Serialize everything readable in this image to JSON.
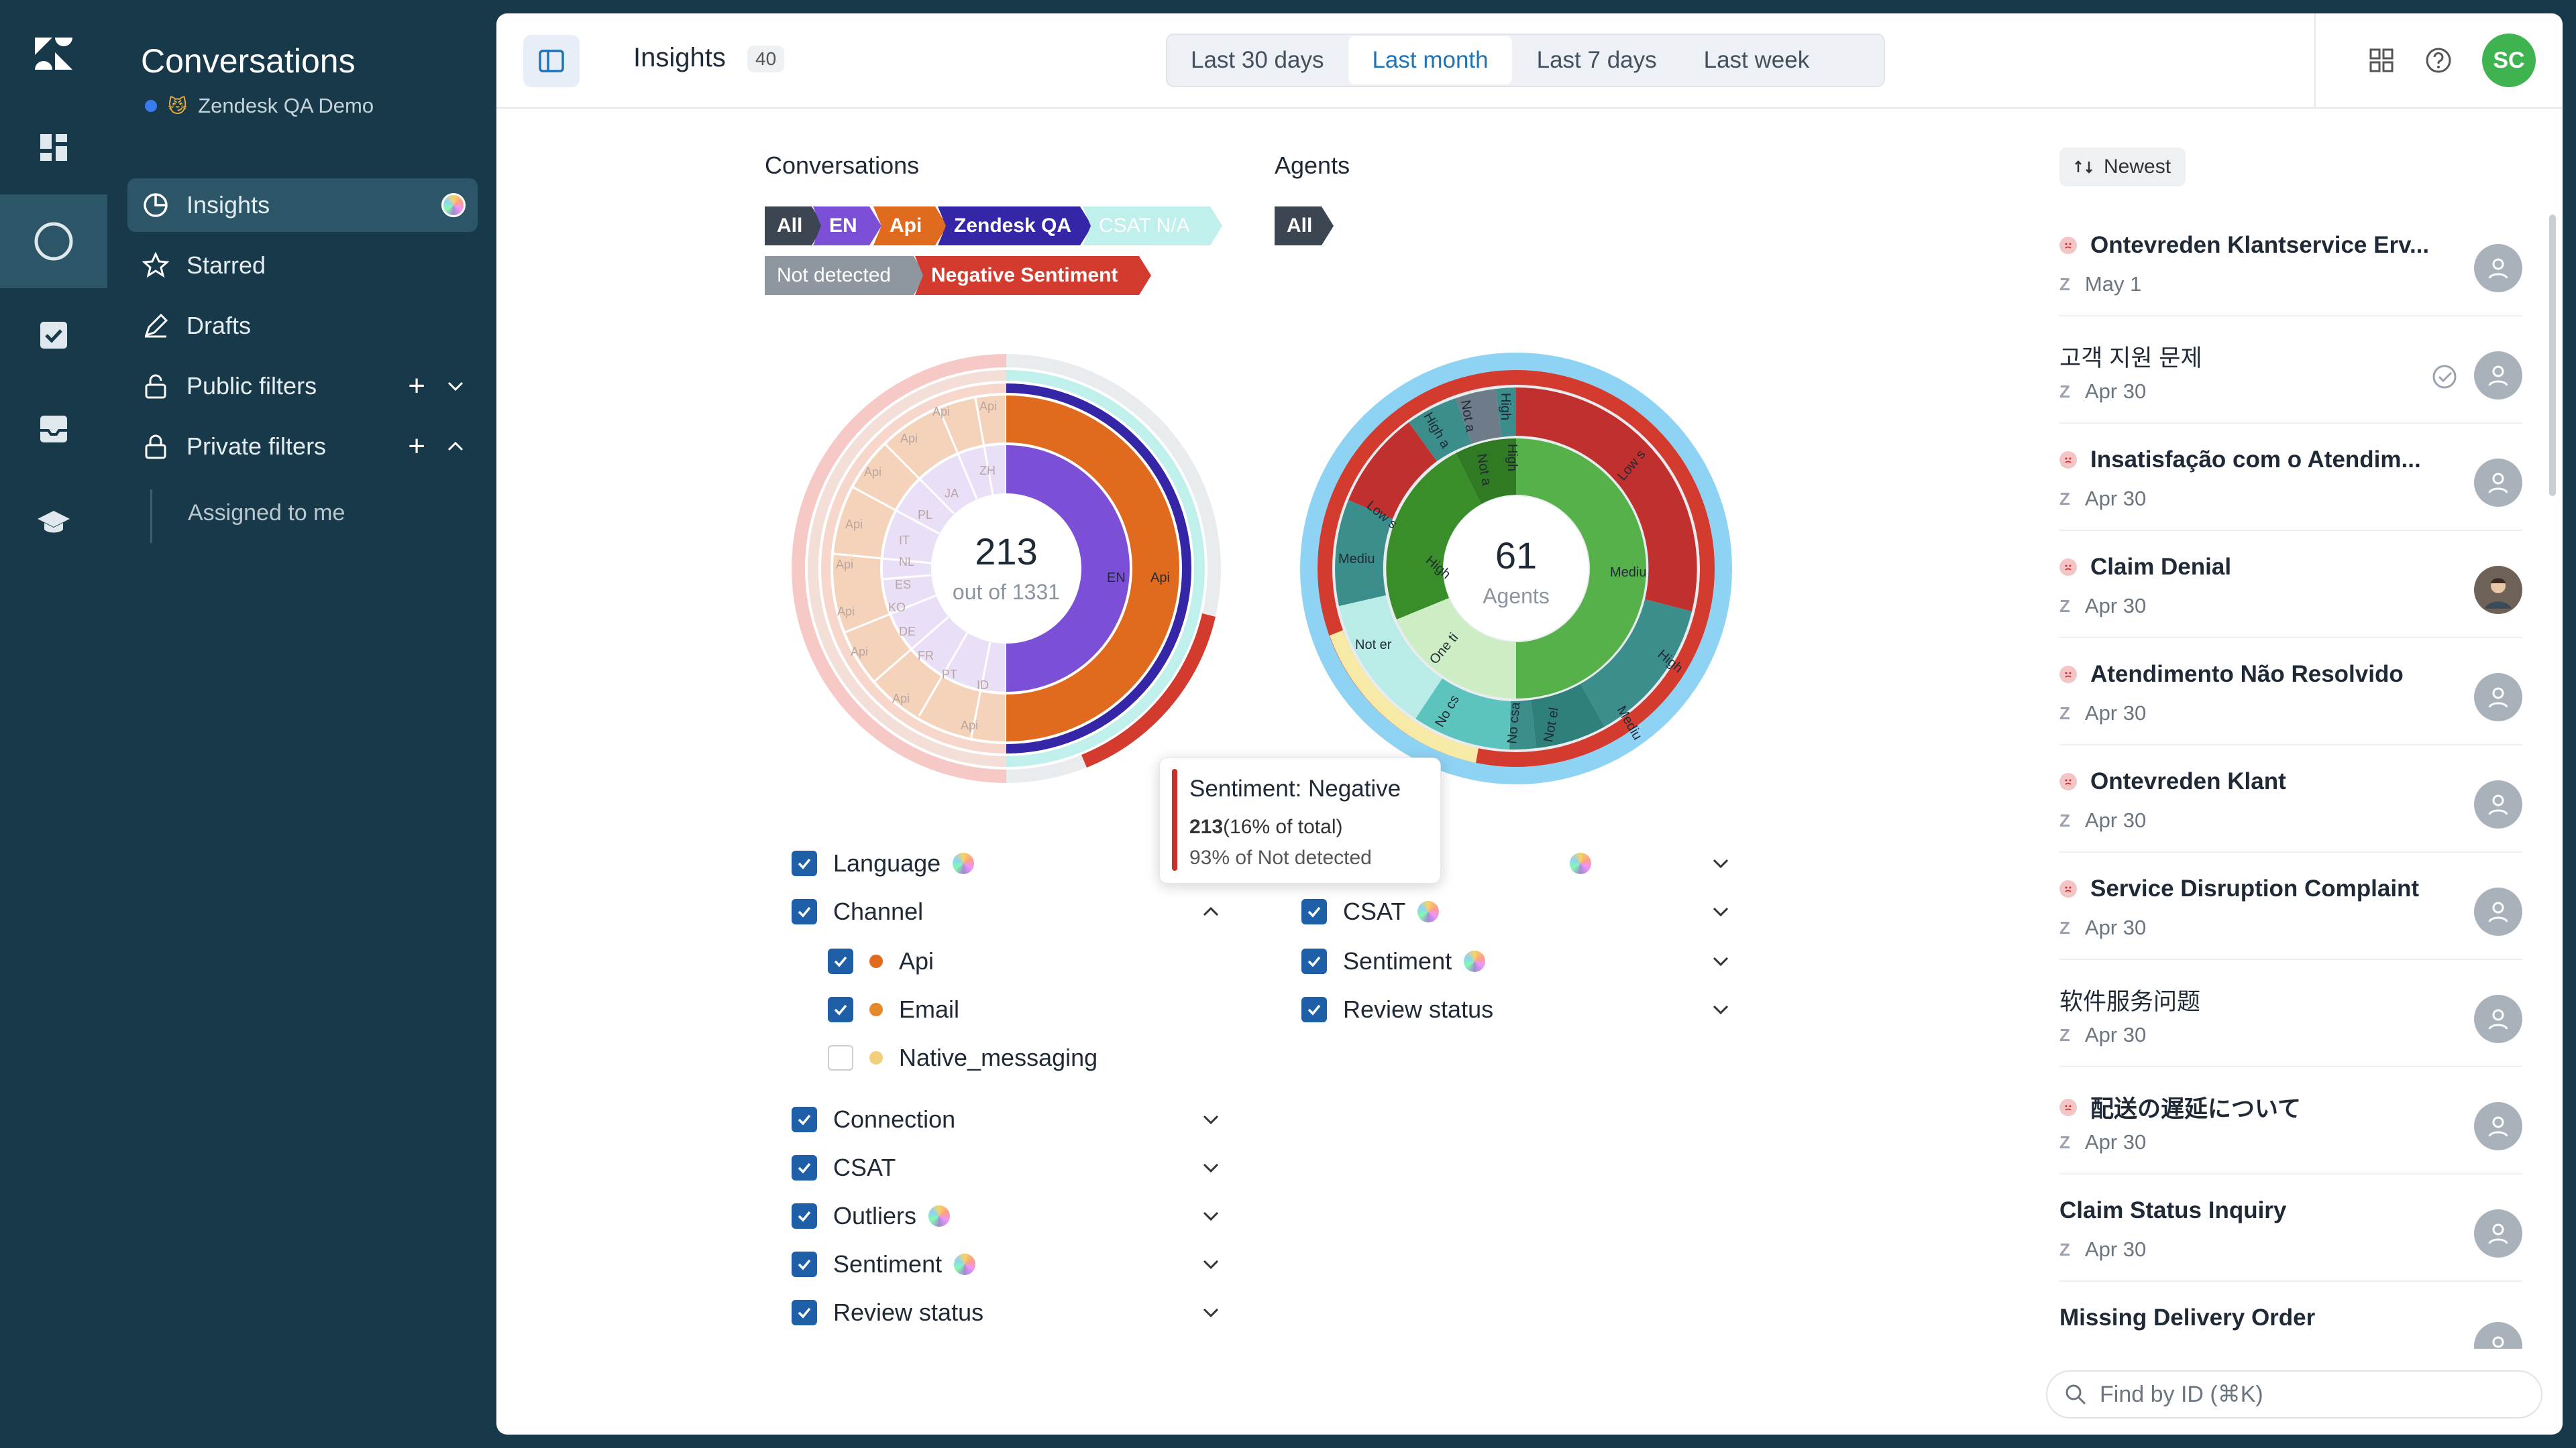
{
  "sidebar": {
    "title": "Conversations",
    "workspace": "Zendesk QA Demo",
    "items": [
      {
        "label": "Insights"
      },
      {
        "label": "Starred"
      },
      {
        "label": "Drafts"
      },
      {
        "label": "Public filters"
      },
      {
        "label": "Private filters"
      }
    ],
    "sub_item": "Assigned to me"
  },
  "header": {
    "title": "Insights",
    "count": "40",
    "ranges": [
      "Last 30 days",
      "Last month",
      "Last 7 days",
      "Last week"
    ],
    "selected_range": "Last month",
    "user_initials": "SC"
  },
  "conversations_section": {
    "title": "Conversations",
    "chips": [
      {
        "label": "All",
        "color": "#3b4652"
      },
      {
        "label": "EN",
        "color": "#7b4fd6"
      },
      {
        "label": "Api",
        "color": "#e06b1f"
      },
      {
        "label": "Zendesk QA",
        "color": "#3526a8"
      },
      {
        "label": "CSAT N/A",
        "color": "#bff0ec"
      },
      {
        "label": "Not detected",
        "color": "#8e979f"
      },
      {
        "label": "Negative Sentiment",
        "color": "#d43b2f"
      }
    ],
    "center_value": "213",
    "center_sub": "out of 1331",
    "inner_labels": [
      "EN",
      "Api"
    ],
    "faded_labels": [
      "Api",
      "Api",
      "Api",
      "Api",
      "Api",
      "Api",
      "Api",
      "Api",
      "Api",
      "Api",
      "JA",
      "PL",
      "IT",
      "NL",
      "ES",
      "KO",
      "DE",
      "FR",
      "PT",
      "ID",
      "ZH"
    ]
  },
  "agents_section": {
    "title": "Agents",
    "chips": [
      {
        "label": "All",
        "color": "#3b4652"
      }
    ],
    "center_value": "61",
    "center_sub": "Agents",
    "labels": [
      "Low s",
      "Mediu",
      "High",
      "Mediu",
      "Not er",
      "One ti",
      "No cs",
      "No csa",
      "Not el",
      "High",
      "Low s",
      "Mediu",
      "High a",
      "Not a",
      "High",
      "Not a",
      "High"
    ]
  },
  "tooltip": {
    "title": "Sentiment: Negative",
    "value": "213",
    "pct": "(16% of total)",
    "line2": "93% of Not detected"
  },
  "left_filters": {
    "language": "Language",
    "channel": "Channel",
    "channel_options": [
      {
        "label": "Api",
        "checked": true,
        "color": "#e06b1f"
      },
      {
        "label": "Email",
        "checked": true,
        "color": "#e58a2a"
      },
      {
        "label": "Native_messaging",
        "checked": false,
        "color": "#f2cf7a"
      }
    ],
    "connection": "Connection",
    "csat": "CSAT",
    "outliers": "Outliers",
    "sentiment": "Sentiment",
    "review_status": "Review status"
  },
  "right_filters": {
    "csat": "CSAT",
    "sentiment": "Sentiment",
    "review_status": "Review status"
  },
  "list": {
    "sort_label": "Newest",
    "items": [
      {
        "title": "Ontevreden Klantservice Erv...",
        "date": "May 1",
        "sad": true,
        "bold": true
      },
      {
        "title": "고객 지원 문제",
        "date": "Apr 30",
        "sad": false,
        "bold": false,
        "reviewed": true
      },
      {
        "title": "Insatisfação com o Atendim...",
        "date": "Apr 30",
        "sad": true,
        "bold": true
      },
      {
        "title": "Claim Denial",
        "date": "Apr 30",
        "sad": true,
        "bold": true,
        "photo": true
      },
      {
        "title": "Atendimento Não Resolvido",
        "date": "Apr 30",
        "sad": true,
        "bold": true
      },
      {
        "title": "Ontevreden Klant",
        "date": "Apr 30",
        "sad": true,
        "bold": true
      },
      {
        "title": "Service Disruption Complaint",
        "date": "Apr 30",
        "sad": true,
        "bold": true
      },
      {
        "title": "软件服务问题",
        "date": "Apr 30",
        "sad": false,
        "bold": false
      },
      {
        "title": "配送の遅延について",
        "date": "Apr 30",
        "sad": true,
        "bold": true
      },
      {
        "title": "Claim Status Inquiry",
        "date": "Apr 30",
        "sad": false,
        "bold": true
      },
      {
        "title": "Missing Delivery Order",
        "date": "",
        "sad": false,
        "bold": true
      }
    ],
    "search_placeholder": "Find by ID (⌘K)"
  }
}
